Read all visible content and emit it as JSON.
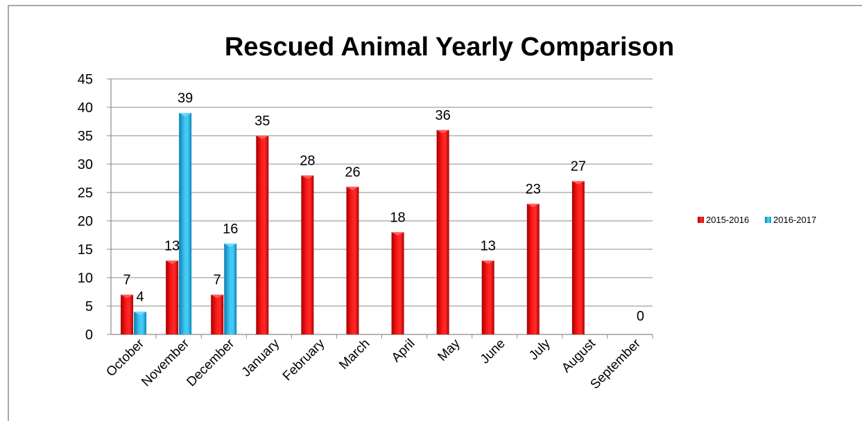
{
  "chart_data": {
    "type": "bar",
    "title": "Rescued Animal Yearly Comparison",
    "xlabel": "",
    "ylabel": "",
    "ylim": [
      0,
      45
    ],
    "yticks": [
      0,
      5,
      10,
      15,
      20,
      25,
      30,
      35,
      40,
      45
    ],
    "grid": true,
    "legend_position": "right",
    "categories": [
      "October",
      "November",
      "December",
      "January",
      "February",
      "March",
      "April",
      "May",
      "June",
      "July",
      "August",
      "September"
    ],
    "series": [
      {
        "name": "2015-2016",
        "color": "#ff0000",
        "values": [
          7,
          13,
          7,
          35,
          28,
          26,
          18,
          36,
          13,
          23,
          27,
          0
        ]
      },
      {
        "name": "2016-2017",
        "color": "#1ab0e6",
        "values": [
          4,
          39,
          16,
          null,
          null,
          null,
          null,
          null,
          null,
          null,
          null,
          null
        ]
      }
    ]
  }
}
